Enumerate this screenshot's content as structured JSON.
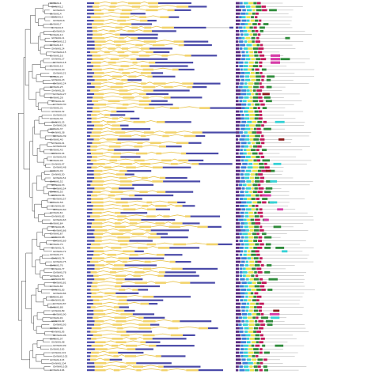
{
  "figure": {
    "row_labels": [
      "GhWAKL1",
      "GhWAKL2",
      "GhWAKL3",
      "GhWAKL4",
      "GhWAKL5",
      "GhWAKL6",
      "GhWAKL7",
      "GhWAKL8",
      "GhWAKL9",
      "GhWAKL10",
      "GhWAKL11",
      "GhWAKL12",
      "GhWAKL13",
      "GhWAKL14",
      "GhWAKL15",
      "GhWAKL16",
      "GhWAKL17",
      "GhWAKL18",
      "GhWAKL19",
      "GhWAKL20",
      "GhWAKL21",
      "GhWAKL22",
      "GhWAKL23",
      "GhWAKL24",
      "GhWAKL25",
      "GhWAKL26",
      "GhWAKL27",
      "GhWAKL28",
      "GhWAKL29",
      "GhWAKL30",
      "GhWAKL31",
      "GhWAKL32",
      "GhWAKL33",
      "GhWAKL34",
      "GhWAKL35",
      "GhWAKL36",
      "GhWAKL37",
      "GhWAKL38",
      "GhWAKL39",
      "GhWAKL40",
      "GhWAKL41",
      "GhWAKL42",
      "GhWAKL43",
      "GhWAKL44",
      "GhWAKL45",
      "GhWAKL46",
      "GhWAKL47",
      "GhWAKL48",
      "GhWAKL49",
      "GhWAKL50",
      "GhWAKL51",
      "GhWAKL52",
      "GhWAKL53",
      "GhWAKL54",
      "GhWAKL55",
      "GhWAKL56",
      "GhWAKL57",
      "GhWAKL58",
      "GhWAKL59",
      "GhWAKL60",
      "GhWAKL61",
      "GhWAKL62",
      "GhWAKL63",
      "GhWAKL64",
      "GhWAKL65",
      "GhWAKL66",
      "GhWAKL67",
      "GhWAKL68",
      "GhWAKL69",
      "GhWAKL70",
      "GhWAKL71",
      "GhWAKL72",
      "GhWAKL73",
      "GhWAKL74",
      "GhWAKL75",
      "GhWAKL76",
      "GhWAKL77",
      "GhWAKL78",
      "GhWAKL79",
      "GhWAKL80",
      "GhWAKL81",
      "GhWAKL82",
      "GhWAKL83",
      "GhWAKL84",
      "GhWAKL85",
      "GhWAKL86",
      "GhWAKL87",
      "GhWAKL88",
      "GhWAKL89",
      "GhWAKL90",
      "GhWAKL91",
      "GhWAKL92",
      "GhWAKL93",
      "GhWAKL94",
      "GhWAKL95",
      "GhWAKL96",
      "GhWAKL97",
      "GhWAKL98",
      "GhWAKL99",
      "GhWAKL100",
      "GhWAKL101",
      "GhWAKL102",
      "GhWAKL103",
      "GhWAKL104",
      "GhWAKL105",
      "GhWAKL106"
    ],
    "colors": {
      "tree": "#444444",
      "utr": "#4a4aa8",
      "cds": "#f2d36b",
      "intron": "#888888",
      "domains": [
        "#5a2d82",
        "#3b7fd9",
        "#34d1d6",
        "#e8e24a",
        "#2e8b3a",
        "#c2185b",
        "#8b1a1a",
        "#d63aa8"
      ]
    }
  }
}
